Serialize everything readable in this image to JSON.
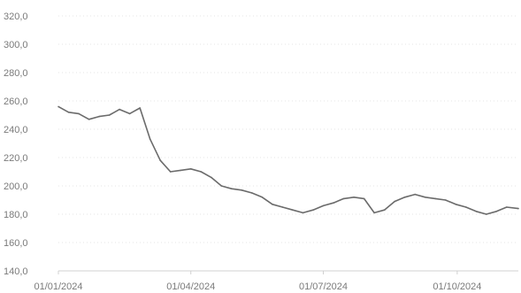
{
  "chart_data": {
    "type": "line",
    "title": "",
    "xlabel": "",
    "ylabel": "",
    "ylim": [
      140,
      320
    ],
    "xlim": [
      "2024-01-01",
      "2024-11-12"
    ],
    "y_ticks": [
      140,
      160,
      180,
      200,
      220,
      240,
      260,
      280,
      300,
      320
    ],
    "y_tick_labels": [
      "140,0",
      "160,0",
      "180,0",
      "200,0",
      "220,0",
      "240,0",
      "260,0",
      "280,0",
      "300,0",
      "320,0"
    ],
    "x_ticks": [
      "2024-01-01",
      "2024-04-01",
      "2024-07-01",
      "2024-10-01"
    ],
    "x_tick_labels": [
      "01/01/2024",
      "01/04/2024",
      "01/07/2024",
      "01/10/2024"
    ],
    "grid": true,
    "legend": "none",
    "line_color": "#6b6b6b",
    "series": [
      {
        "x": [
          "2024-01-01",
          "2024-01-08",
          "2024-01-15",
          "2024-01-22",
          "2024-01-29",
          "2024-02-05",
          "2024-02-12",
          "2024-02-19",
          "2024-02-26",
          "2024-03-04",
          "2024-03-11",
          "2024-03-18",
          "2024-03-25",
          "2024-04-01",
          "2024-04-08",
          "2024-04-15",
          "2024-04-22",
          "2024-04-29",
          "2024-05-06",
          "2024-05-13",
          "2024-05-20",
          "2024-05-27",
          "2024-06-03",
          "2024-06-10",
          "2024-06-17",
          "2024-06-24",
          "2024-07-01",
          "2024-07-08",
          "2024-07-15",
          "2024-07-22",
          "2024-07-29",
          "2024-08-05",
          "2024-08-12",
          "2024-08-19",
          "2024-08-26",
          "2024-09-02",
          "2024-09-09",
          "2024-09-16",
          "2024-09-23",
          "2024-09-30",
          "2024-10-07",
          "2024-10-14",
          "2024-10-21",
          "2024-10-28",
          "2024-11-04",
          "2024-11-12"
        ],
        "values": [
          256,
          252,
          251,
          247,
          249,
          250,
          254,
          251,
          255,
          233,
          218,
          210,
          211,
          212,
          210,
          206,
          200,
          198,
          197,
          195,
          192,
          187,
          185,
          183,
          181,
          183,
          186,
          188,
          191,
          192,
          191,
          181,
          183,
          189,
          192,
          194,
          192,
          191,
          190,
          187,
          185,
          182,
          180,
          182,
          185,
          184
        ]
      }
    ]
  }
}
